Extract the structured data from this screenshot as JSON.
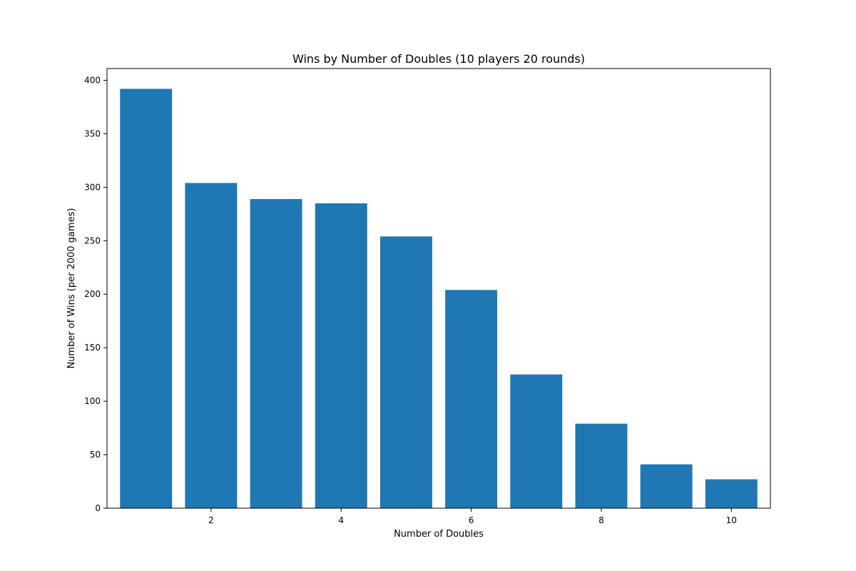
{
  "chart_data": {
    "type": "bar",
    "title": "Wins by Number of Doubles (10 players 20 rounds)",
    "xlabel": "Number of Doubles",
    "ylabel": "Number of Wins (per 2000 games)",
    "x": [
      1,
      2,
      3,
      4,
      5,
      6,
      7,
      8,
      9,
      10
    ],
    "values": [
      392,
      304,
      289,
      285,
      254,
      204,
      125,
      79,
      41,
      27
    ],
    "xlim": [
      0.4,
      10.6
    ],
    "ylim": [
      0,
      411
    ],
    "xticks": [
      2,
      4,
      6,
      8,
      10
    ],
    "xtick_labels": [
      "2",
      "4",
      "6",
      "8",
      "10"
    ],
    "yticks": [
      0,
      50,
      100,
      150,
      200,
      250,
      300,
      350,
      400
    ],
    "ytick_labels": [
      "0",
      "50",
      "100",
      "150",
      "200",
      "250",
      "300",
      "350",
      "400"
    ],
    "bar_color": "#1f77b4",
    "grid": false
  }
}
